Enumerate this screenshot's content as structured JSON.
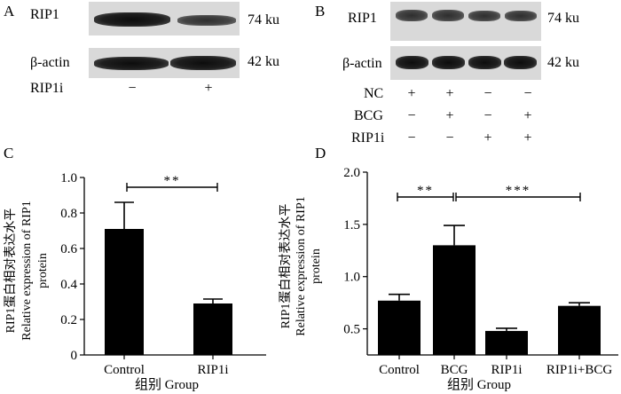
{
  "panels": {
    "A": {
      "letter": "A",
      "rip1_label": "RIP1",
      "rip1_size": "74 ku",
      "actin_label": "β-actin",
      "actin_size": "42 ku",
      "row_label": "RIP1i",
      "signs": [
        "−",
        "+"
      ]
    },
    "B": {
      "letter": "B",
      "rip1_label": "RIP1",
      "rip1_size": "74 ku",
      "actin_label": "β-actin",
      "actin_size": "42 ku",
      "rows": [
        {
          "label": "NC",
          "signs": [
            "+",
            "+",
            "−",
            "−"
          ]
        },
        {
          "label": "BCG",
          "signs": [
            "−",
            "+",
            "−",
            "+"
          ]
        },
        {
          "label": "RIP1i",
          "signs": [
            "−",
            "−",
            "+",
            "+"
          ]
        }
      ]
    },
    "C": {
      "letter": "C",
      "ylabel_cn": "RIP1蛋白相对表达水平",
      "ylabel_en1": "Relative expression of RIP1",
      "ylabel_en2": "protein",
      "xlabel": "组别 Group",
      "significance": "**"
    },
    "D": {
      "letter": "D",
      "ylabel_cn": "RIP1蛋白相对表达水平",
      "ylabel_en1": "Relative expression of RIP1",
      "ylabel_en2": "protein",
      "xlabel": "组别 Group",
      "significance": [
        "**",
        "***"
      ]
    }
  },
  "chart_data": [
    {
      "type": "bar",
      "categories": [
        "Control",
        "RIP1i"
      ],
      "values": [
        0.71,
        0.29
      ],
      "errors": [
        0.15,
        0.025
      ],
      "ylim": [
        0,
        1.0
      ],
      "yticks": [
        "0",
        "0.2",
        "0.4",
        "0.6",
        "0.8",
        "1.0"
      ],
      "xlabel": "组别 Group",
      "ylabel": "RIP1蛋白相对表达水平 Relative expression of RIP1 protein"
    },
    {
      "type": "bar",
      "categories": [
        "Control",
        "BCG",
        "RIP1i",
        "RIP1i+BCG"
      ],
      "values": [
        0.77,
        1.3,
        0.48,
        0.72
      ],
      "errors": [
        0.06,
        0.19,
        0.025,
        0.03
      ],
      "ylim": [
        0.25,
        2.0
      ],
      "yticks": [
        "0.5",
        "1.0",
        "1.5",
        "2.0"
      ],
      "xlabel": "组别 Group",
      "ylabel": "RIP1蛋白相对表达水平 Relative expression of RIP1 protein"
    }
  ]
}
